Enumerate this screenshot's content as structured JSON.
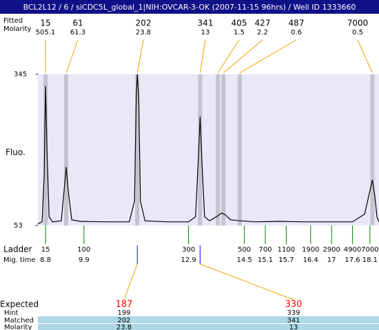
{
  "header": {
    "title": "BCL2L12 / 6 / siCDC5L_global_1|NIH:OVCAR-3-OK (2007-11-15 96hrs) / Well ID 1333660"
  },
  "chart_data": {
    "type": "electropherogram",
    "y_label": "Fluo.",
    "ylim": [
      53,
      345
    ],
    "yticks": [
      53,
      345
    ],
    "xlim": [
      8.58,
      18.36
    ],
    "background": "#e8e8f8",
    "trace": {
      "color": "#000000",
      "x": [
        8.58,
        8.7,
        8.76,
        8.8,
        8.84,
        8.9,
        9.0,
        9.25,
        9.33,
        9.39,
        9.45,
        9.55,
        9.8,
        10.5,
        11.2,
        11.35,
        11.4,
        11.43,
        11.47,
        11.52,
        11.65,
        12.3,
        12.9,
        13.1,
        13.18,
        13.23,
        13.28,
        13.36,
        13.5,
        13.7,
        13.85,
        13.95,
        14.1,
        14.4,
        14.8,
        15.5,
        16.2,
        17.0,
        17.6,
        17.95,
        18.1,
        18.17,
        18.24,
        18.3,
        18.36
      ],
      "y": [
        56,
        60,
        150,
        322,
        200,
        70,
        60,
        62,
        120,
        166,
        120,
        64,
        61,
        60,
        60,
        100,
        300,
        345,
        300,
        100,
        62,
        60,
        60,
        70,
        180,
        263,
        180,
        70,
        62,
        70,
        77,
        74,
        64,
        62,
        60,
        61,
        60,
        60,
        60,
        75,
        120,
        141,
        110,
        70,
        60
      ]
    },
    "peaks": {
      "row_labels": [
        "Fitted",
        "Molarity"
      ],
      "band_color": "#c4c4d0",
      "line_color": "#f0a000",
      "x": [
        8.8,
        9.39,
        11.43,
        13.23,
        13.74,
        13.9,
        14.37,
        18.17
      ],
      "sizes": [
        15,
        61,
        202,
        341,
        405,
        427,
        487,
        7000
      ],
      "molarity": [
        505.1,
        61.3,
        23.8,
        13,
        1.5,
        2.2,
        0.6,
        0.5
      ]
    },
    "ladder": {
      "row_labels": [
        "Ladder",
        "Mig. time"
      ],
      "color": "#008000",
      "sizes": [
        15,
        100,
        300,
        500,
        700,
        1100,
        1900,
        2900,
        4900,
        7000
      ],
      "mig_times": [
        8.8,
        9.9,
        12.9,
        14.5,
        15.1,
        15.7,
        16.4,
        17,
        17.6,
        18.1
      ]
    }
  },
  "results": {
    "row_labels": [
      "Expected",
      "Hint",
      "Matched",
      "Molarity"
    ],
    "expected_color": "#ff0000",
    "row_color": "#add8e6",
    "marker_color": "#0000ff",
    "expected": [
      187,
      330
    ],
    "hint": [
      199,
      339
    ],
    "matched": [
      202,
      341
    ],
    "molarity": [
      23.8,
      13
    ]
  }
}
